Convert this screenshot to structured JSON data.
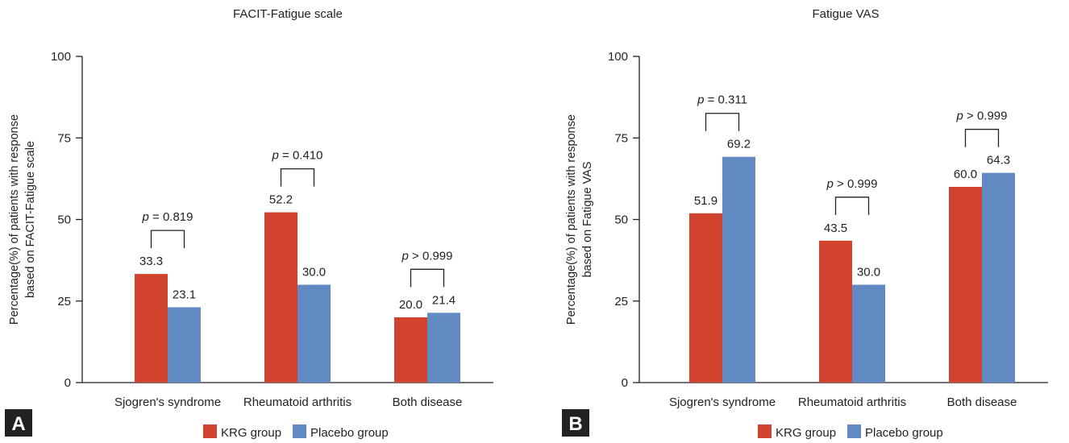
{
  "colors": {
    "kgr": "#d2432f",
    "placebo": "#6189c2",
    "panel_badge": "#222222"
  },
  "legend": [
    {
      "label": "KRG group",
      "color": "#d2432f"
    },
    {
      "label": "Placebo group",
      "color": "#6189c2"
    }
  ],
  "chart_data": [
    {
      "panel": "A",
      "type": "bar",
      "title": "FACIT-Fatigue scale",
      "ylabel_lines": [
        "Percentage(%) of patients with response",
        "based on FACIT-Fatigue scale"
      ],
      "ylim": [
        0,
        100
      ],
      "yticks": [
        0,
        25,
        50,
        75,
        100
      ],
      "categories": [
        "Sjogren's syndrome",
        "Rheumatoid arthritis",
        "Both disease"
      ],
      "series": [
        {
          "name": "KRG group",
          "values": [
            33.3,
            52.2,
            20.0
          ],
          "labels": [
            "33.3",
            "52.2",
            "20.0"
          ]
        },
        {
          "name": "Placebo group",
          "values": [
            23.1,
            30.0,
            21.4
          ],
          "labels": [
            "23.1",
            "30.0",
            "21.4"
          ]
        }
      ],
      "pvalues": [
        {
          "prefix": "p",
          "rest": " = 0.819"
        },
        {
          "prefix": "p",
          "rest": " = 0.410"
        },
        {
          "prefix": "p",
          "rest": " > 0.999"
        }
      ],
      "grid": false,
      "legend_position": "bottom"
    },
    {
      "panel": "B",
      "type": "bar",
      "title": "Fatigue VAS",
      "ylabel_lines": [
        "Percentage(%) of patients with response",
        "based on Fatigue VAS"
      ],
      "ylim": [
        0,
        100
      ],
      "yticks": [
        0,
        25,
        50,
        75,
        100
      ],
      "categories": [
        "Sjogren's syndrome",
        "Rheumatoid arthritis",
        "Both disease"
      ],
      "series": [
        {
          "name": "KRG group",
          "values": [
            51.9,
            43.5,
            60.0
          ],
          "labels": [
            "51.9",
            "43.5",
            "60.0"
          ]
        },
        {
          "name": "Placebo group",
          "values": [
            69.2,
            30.0,
            64.3
          ],
          "labels": [
            "69.2",
            "30.0",
            "64.3"
          ]
        }
      ],
      "pvalues": [
        {
          "prefix": "p",
          "rest": " = 0.311"
        },
        {
          "prefix": "p",
          "rest": " > 0.999"
        },
        {
          "prefix": "p",
          "rest": " > 0.999"
        }
      ],
      "grid": false,
      "legend_position": "bottom"
    }
  ]
}
